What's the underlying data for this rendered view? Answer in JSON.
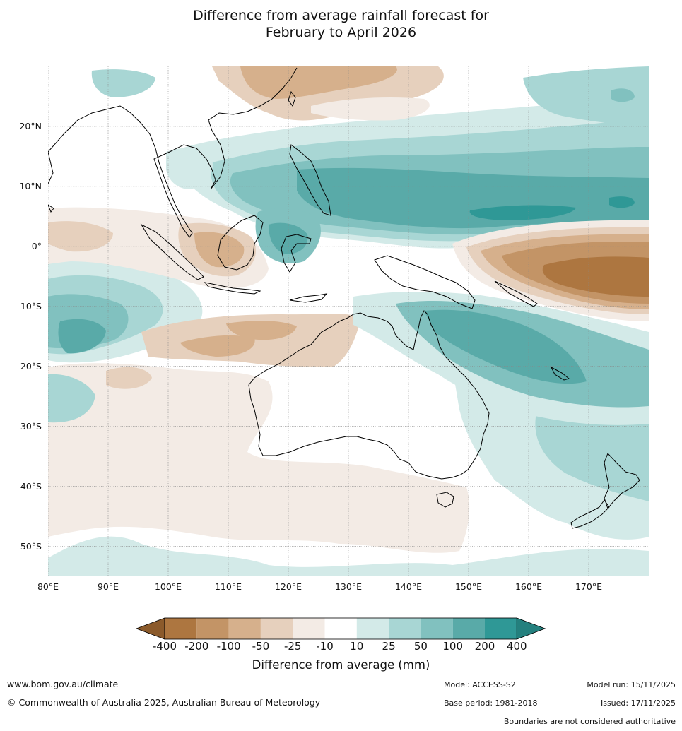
{
  "title": {
    "line1": "Difference from average rainfall forecast for",
    "line2": "February to April 2026"
  },
  "map": {
    "lat_labels": [
      "20°N",
      "10°N",
      "0°",
      "10°S",
      "20°S",
      "30°S",
      "40°S",
      "50°S"
    ],
    "lat_values": [
      20,
      10,
      0,
      -10,
      -20,
      -30,
      -40,
      -50
    ],
    "lon_labels": [
      "80°E",
      "90°E",
      "100°E",
      "110°E",
      "120°E",
      "130°E",
      "140°E",
      "150°E",
      "160°E",
      "170°E"
    ],
    "lon_values": [
      80,
      90,
      100,
      110,
      120,
      130,
      140,
      150,
      160,
      170
    ],
    "extent": {
      "lon_min": 80,
      "lon_max": 180,
      "lat_min": -55,
      "lat_max": 30
    }
  },
  "colorbar": {
    "labels": [
      "-400",
      "-200",
      "-100",
      "-50",
      "-25",
      "-10",
      "10",
      "25",
      "50",
      "100",
      "200",
      "400"
    ],
    "colors": [
      "#8b5a2b",
      "#ad7640",
      "#c39466",
      "#d6b08c",
      "#e6d0bd",
      "#f3ebe5",
      "#ffffff",
      "#d3eae8",
      "#a8d6d4",
      "#81c1bf",
      "#59aaa8",
      "#2f9896",
      "#24807e"
    ],
    "title": "Difference from average (mm)"
  },
  "footer": {
    "website": "www.bom.gov.au/climate",
    "copyright": "© Commonwealth of Australia 2025, Australian Bureau of Meteorology",
    "model": "Model: ACCESS-S2",
    "base_period": "Base period: 1981-2018",
    "model_run": "Model run: 15/11/2025",
    "issued": "Issued: 17/11/2025",
    "disclaimer": "Boundaries are not considered authoritative"
  }
}
